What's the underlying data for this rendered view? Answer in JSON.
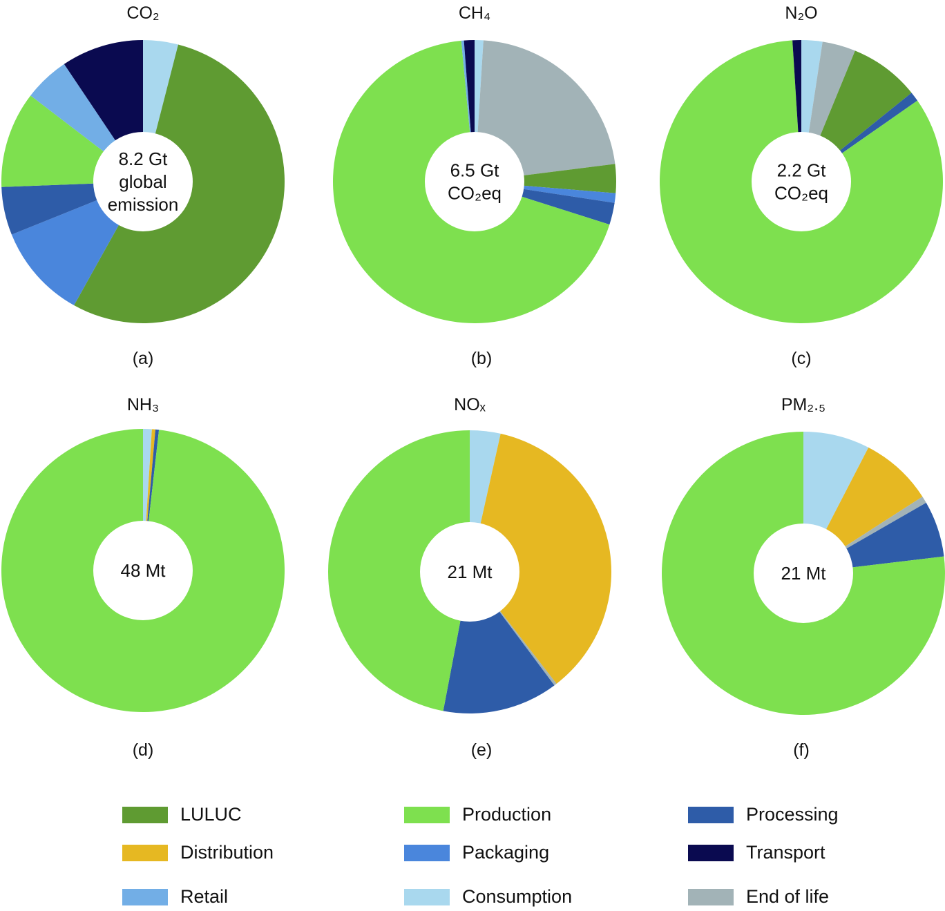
{
  "chart_data": [
    {
      "type": "pie",
      "title": "CO₂",
      "panel": "(a)",
      "center_text": [
        "8.2 Gt",
        "global",
        "emission"
      ],
      "slices": [
        {
          "name": "Consumption",
          "value": 4.0
        },
        {
          "name": "LULUC",
          "value": 54.1
        },
        {
          "name": "Packaging",
          "value": 10.8
        },
        {
          "name": "Processing",
          "value": 5.5
        },
        {
          "name": "Production",
          "value": 11.0
        },
        {
          "name": "Retail",
          "value": 5.2
        },
        {
          "name": "Transport",
          "value": 9.4
        }
      ]
    },
    {
      "type": "pie",
      "title": "CH₄",
      "panel": "(b)",
      "center_text": [
        "6.5 Gt",
        "CO₂eq"
      ],
      "slices": [
        {
          "name": "Consumption",
          "value": 1.0
        },
        {
          "name": "End of life",
          "value": 22.0
        },
        {
          "name": "LULUC",
          "value": 3.3
        },
        {
          "name": "Packaging",
          "value": 1.1
        },
        {
          "name": "Processing",
          "value": 2.5
        },
        {
          "name": "Production",
          "value": 68.6
        },
        {
          "name": "Retail",
          "value": 0.3
        },
        {
          "name": "Transport",
          "value": 1.2
        }
      ]
    },
    {
      "type": "pie",
      "title": "N₂O",
      "panel": "(c)",
      "center_text": [
        "2.2 Gt",
        "CO₂eq"
      ],
      "slices": [
        {
          "name": "Consumption",
          "value": 2.4
        },
        {
          "name": "End of life",
          "value": 3.8
        },
        {
          "name": "LULUC",
          "value": 8.0
        },
        {
          "name": "Processing",
          "value": 1.1
        },
        {
          "name": "Production",
          "value": 83.7
        },
        {
          "name": "Transport",
          "value": 1.0
        }
      ]
    },
    {
      "type": "pie",
      "title": "NH₃",
      "panel": "(d)",
      "center_text": [
        "48 Mt"
      ],
      "slices": [
        {
          "name": "Consumption",
          "value": 1.0
        },
        {
          "name": "Distribution",
          "value": 0.4
        },
        {
          "name": "Processing",
          "value": 0.4
        },
        {
          "name": "Production",
          "value": 98.2
        }
      ]
    },
    {
      "type": "pie",
      "title": "NOₓ",
      "panel": "(e)",
      "center_text": [
        "21 Mt"
      ],
      "slices": [
        {
          "name": "Consumption",
          "value": 3.5
        },
        {
          "name": "Distribution",
          "value": 36.0
        },
        {
          "name": "End of life",
          "value": 0.3
        },
        {
          "name": "Processing",
          "value": 13.2
        },
        {
          "name": "Production",
          "value": 47.0
        }
      ]
    },
    {
      "type": "pie",
      "title": "PM₂.₅",
      "panel": "(f)",
      "center_text": [
        "21 Mt"
      ],
      "slices": [
        {
          "name": "Consumption",
          "value": 7.6
        },
        {
          "name": "Distribution",
          "value": 8.3
        },
        {
          "name": "End of life",
          "value": 0.8
        },
        {
          "name": "Processing",
          "value": 6.4
        },
        {
          "name": "Production",
          "value": 76.9
        }
      ]
    }
  ],
  "legend": [
    {
      "name": "LULUC",
      "color": "#5f9b32"
    },
    {
      "name": "Production",
      "color": "#7ee04f"
    },
    {
      "name": "Processing",
      "color": "#2e5ca8"
    },
    {
      "name": "Distribution",
      "color": "#e6b822"
    },
    {
      "name": "Packaging",
      "color": "#4a86dc"
    },
    {
      "name": "Transport",
      "color": "#0a0a50"
    },
    {
      "name": "Retail",
      "color": "#72aee6"
    },
    {
      "name": "Consumption",
      "color": "#a9d8ee"
    },
    {
      "name": "End of life",
      "color": "#a2b3b7"
    }
  ]
}
